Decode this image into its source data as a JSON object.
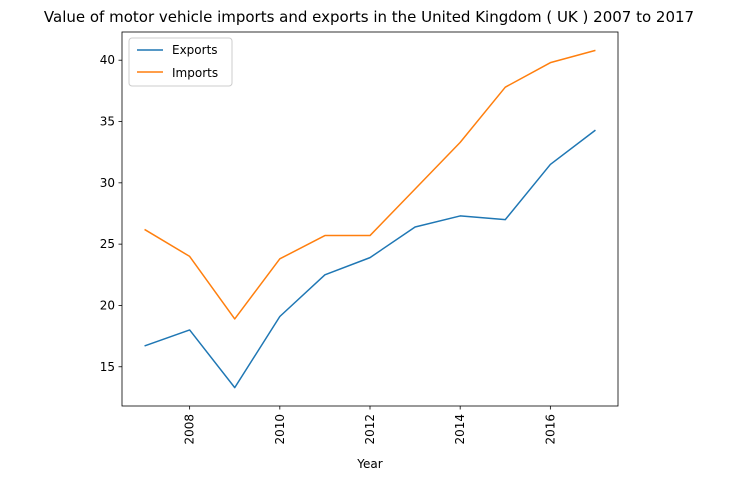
{
  "chart_data": {
    "type": "line",
    "title": "Value of motor vehicle imports and exports in the United Kingdom ( UK ) 2007 to 2017",
    "xlabel": "Year",
    "ylabel": "",
    "x": [
      2007,
      2008,
      2009,
      2010,
      2011,
      2012,
      2013,
      2014,
      2015,
      2016,
      2017
    ],
    "xlim": [
      2006.5,
      2017.5
    ],
    "ylim": [
      11.8,
      42.3
    ],
    "xticks": [
      "2008",
      "2010",
      "2012",
      "2014",
      "2016"
    ],
    "yticks": [
      "15",
      "20",
      "25",
      "30",
      "35",
      "40"
    ],
    "grid": false,
    "legend_position": "top-left",
    "series": [
      {
        "name": "Exports",
        "color": "#1f77b4",
        "values": [
          16.7,
          18.0,
          13.3,
          19.1,
          22.5,
          23.9,
          26.4,
          27.3,
          27.0,
          31.5,
          34.3
        ]
      },
      {
        "name": "Imports",
        "color": "#ff7f0e",
        "values": [
          26.2,
          24.0,
          18.9,
          23.8,
          25.7,
          25.7,
          29.5,
          33.3,
          37.8,
          39.8,
          40.8
        ]
      }
    ]
  }
}
